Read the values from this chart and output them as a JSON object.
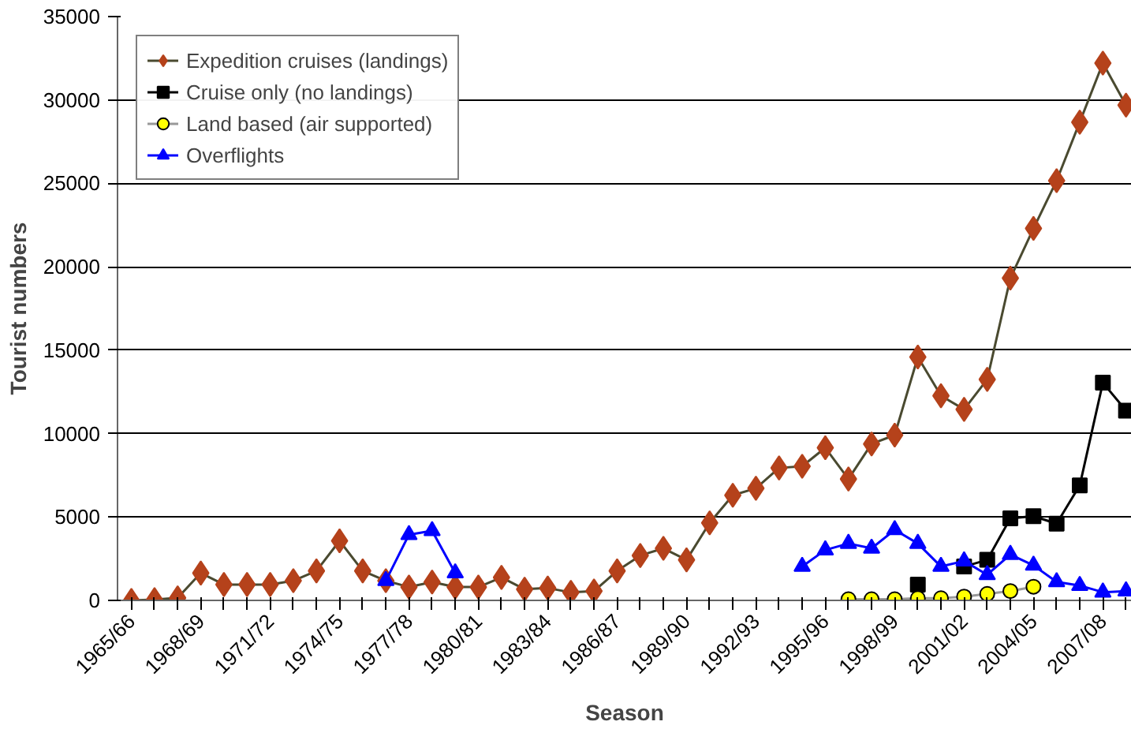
{
  "chart_data": {
    "type": "line",
    "xlabel": "Season",
    "ylabel": "Tourist numbers",
    "categories": [
      "1965/66",
      null,
      null,
      "1968/69",
      null,
      null,
      "1971/72",
      null,
      null,
      "1974/75",
      null,
      null,
      "1977/78",
      null,
      null,
      "1980/81",
      null,
      null,
      "1983/84",
      null,
      null,
      "1986/87",
      null,
      null,
      "1989/90",
      null,
      null,
      "1992/93",
      null,
      null,
      "1995/96",
      null,
      null,
      "1998/99",
      null,
      null,
      "2001/02",
      null,
      null,
      "2004/05",
      null,
      null,
      "2007/08",
      null
    ],
    "ylim": [
      0,
      35000
    ],
    "yticks": [
      0,
      5000,
      10000,
      15000,
      20000,
      25000,
      30000,
      35000
    ],
    "grid": "y",
    "legend": "top left",
    "series": [
      {
        "name": "Expedition cruises (landings)",
        "color": "#b5421b",
        "marker": "diamond",
        "values": [
          0,
          50,
          150,
          1640,
          950,
          950,
          950,
          1180,
          1770,
          3570,
          1770,
          1180,
          800,
          1100,
          800,
          800,
          1380,
          670,
          740,
          480,
          560,
          1770,
          2690,
          3120,
          2430,
          4650,
          6300,
          6720,
          7940,
          8040,
          9150,
          7280,
          9380,
          9910,
          14590,
          12270,
          11450,
          13250,
          19320,
          22300,
          25160,
          28670,
          32210,
          29690
        ]
      },
      {
        "name": "Cruise only (no landings)",
        "color": "#000000",
        "marker": "square",
        "values": [
          null,
          null,
          null,
          null,
          null,
          null,
          null,
          null,
          null,
          null,
          null,
          null,
          null,
          null,
          null,
          null,
          null,
          null,
          null,
          null,
          null,
          null,
          null,
          null,
          null,
          null,
          null,
          null,
          null,
          null,
          null,
          null,
          null,
          null,
          950,
          null,
          2030,
          2430,
          4920,
          5050,
          4600,
          6890,
          13050,
          11380
        ]
      },
      {
        "name": "Land based (air supported)",
        "color": "#ffff00",
        "marker": "circle",
        "values": [
          null,
          null,
          null,
          null,
          null,
          null,
          null,
          null,
          null,
          null,
          null,
          null,
          null,
          null,
          null,
          null,
          null,
          null,
          null,
          null,
          null,
          null,
          null,
          null,
          null,
          null,
          null,
          null,
          null,
          null,
          null,
          70,
          70,
          70,
          130,
          130,
          230,
          390,
          560,
          820,
          null,
          null,
          null,
          null
        ]
      },
      {
        "name": "Overflights",
        "color": "#0000ff",
        "marker": "triangle",
        "values": [
          null,
          null,
          null,
          null,
          null,
          null,
          null,
          null,
          null,
          null,
          null,
          1180,
          3940,
          4170,
          1640,
          null,
          null,
          null,
          null,
          null,
          null,
          null,
          null,
          null,
          null,
          null,
          null,
          null,
          null,
          2030,
          3020,
          3410,
          3120,
          4230,
          3410,
          2030,
          2360,
          1540,
          2750,
          2100,
          1110,
          890,
          490,
          560
        ]
      }
    ]
  }
}
